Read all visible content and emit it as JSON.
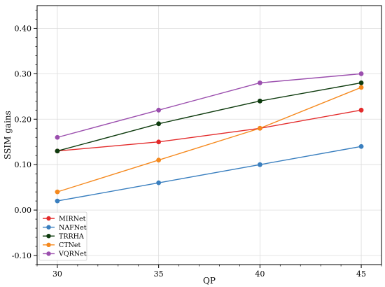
{
  "chart_data": {
    "type": "line",
    "xlabel": "QP",
    "ylabel": "SSIM gains",
    "x": [
      30,
      35,
      40,
      45
    ],
    "xticks": [
      30,
      35,
      40,
      45
    ],
    "xlim": [
      29,
      46
    ],
    "ylim": [
      -0.12,
      0.45
    ],
    "yticks": [
      -0.1,
      0.0,
      0.1,
      0.2,
      0.3,
      0.4
    ],
    "ytick_labels": [
      "-0.10",
      "0.00",
      "0.10",
      "0.20",
      "0.30",
      "0.40"
    ],
    "grid": true,
    "legend_position": "bottom-left",
    "series": [
      {
        "name": "MIRNet",
        "color": "#e32b2b",
        "values": [
          0.13,
          0.15,
          0.18,
          0.22
        ]
      },
      {
        "name": "NAFNet",
        "color": "#3a7fbf",
        "values": [
          0.02,
          0.06,
          0.1,
          0.14
        ]
      },
      {
        "name": "TRRHA",
        "color": "#0e3b0e",
        "values": [
          0.13,
          0.19,
          0.24,
          0.28
        ]
      },
      {
        "name": "CTNet",
        "color": "#f5891e",
        "values": [
          0.04,
          0.11,
          0.18,
          0.27
        ]
      },
      {
        "name": "VQRNet",
        "color": "#9b4fae",
        "values": [
          0.16,
          0.22,
          0.28,
          0.3
        ]
      }
    ]
  }
}
